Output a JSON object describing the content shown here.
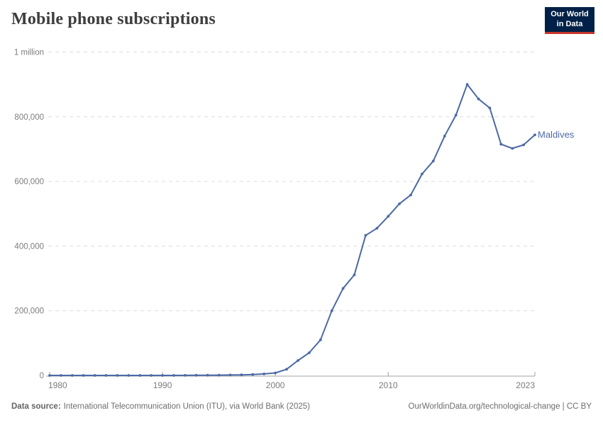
{
  "header": {
    "title": "Mobile phone subscriptions",
    "logo_line1": "Our World",
    "logo_line2": "in Data"
  },
  "chart_data": {
    "type": "line",
    "title": "Mobile phone subscriptions",
    "entity_label": "Maldives",
    "x": [
      1980,
      1981,
      1982,
      1983,
      1984,
      1985,
      1986,
      1987,
      1988,
      1989,
      1990,
      1991,
      1992,
      1993,
      1994,
      1995,
      1996,
      1997,
      1998,
      1999,
      2000,
      2001,
      2002,
      2003,
      2004,
      2005,
      2006,
      2007,
      2008,
      2009,
      2010,
      2011,
      2012,
      2013,
      2014,
      2015,
      2016,
      2017,
      2018,
      2019,
      2020,
      2021,
      2022,
      2023
    ],
    "values": [
      0,
      0,
      0,
      0,
      0,
      0,
      0,
      0,
      0,
      0,
      0,
      100,
      200,
      400,
      600,
      900,
      1300,
      1800,
      2900,
      4500,
      7700,
      19000,
      46000,
      70000,
      110000,
      200000,
      269000,
      311000,
      433000,
      455000,
      492000,
      531000,
      558000,
      623000,
      663000,
      740000,
      805000,
      900000,
      855000,
      827000,
      715000,
      702000,
      713000,
      744000
    ],
    "xlabel": "",
    "ylabel": "",
    "xlim": [
      1980,
      2023
    ],
    "ylim": [
      0,
      1000000
    ],
    "grid": "horizontal-dashed",
    "legend_position": "end-of-line",
    "yticks": [
      {
        "value": 0,
        "label": "0"
      },
      {
        "value": 200000,
        "label": "200,000"
      },
      {
        "value": 400000,
        "label": "400,000"
      },
      {
        "value": 600000,
        "label": "600,000"
      },
      {
        "value": 800000,
        "label": "800,000"
      },
      {
        "value": 1000000,
        "label": "1 million"
      }
    ],
    "xticks": [
      {
        "value": 1980,
        "label": "1980"
      },
      {
        "value": 1990,
        "label": "1990"
      },
      {
        "value": 2000,
        "label": "2000"
      },
      {
        "value": 2010,
        "label": "2010"
      },
      {
        "value": 2023,
        "label": "2023"
      }
    ]
  },
  "colors": {
    "line": "#4c69a5",
    "gridline": "#dcdcdc",
    "axis": "#a3a3a3",
    "tick_label": "#7c7c7c",
    "logo_bg": "#002147",
    "logo_accent": "#c8352c"
  },
  "footer": {
    "source_label": "Data source:",
    "source_text": "International Telecommunication Union (ITU), via World Bank (2025)",
    "link": "OurWorldinData.org/technological-change | CC BY"
  }
}
